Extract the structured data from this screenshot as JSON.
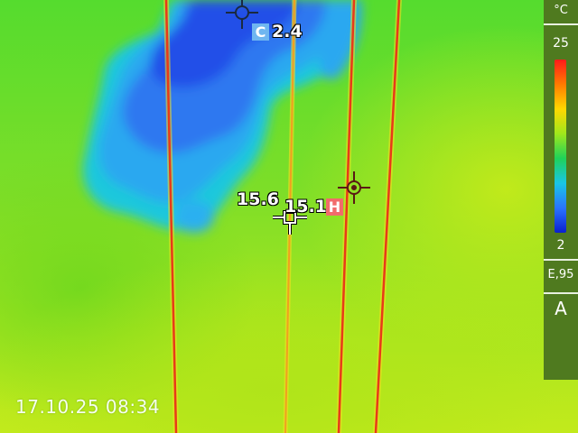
{
  "scale": {
    "unit": "°C",
    "max": "25",
    "min": "2",
    "emissivity": "E,95",
    "mode": "A",
    "gradient_colors": [
      "#ff1a1a",
      "#ff7a00",
      "#ffd800",
      "#9fe81c",
      "#1fd25a",
      "#19c6e6",
      "#2a74ff",
      "#0a1fcf"
    ]
  },
  "spots": {
    "cold_badge": "C",
    "cold_value": "2.4",
    "hot_badge": "H",
    "center_value_1": "15.6",
    "center_value_2": "15.1"
  },
  "timestamp": "17.10.25 08:34",
  "colors": {
    "hot_marker": "#f26b6b",
    "cold_marker": "#6fb6f0",
    "wire": "#e83a18"
  }
}
